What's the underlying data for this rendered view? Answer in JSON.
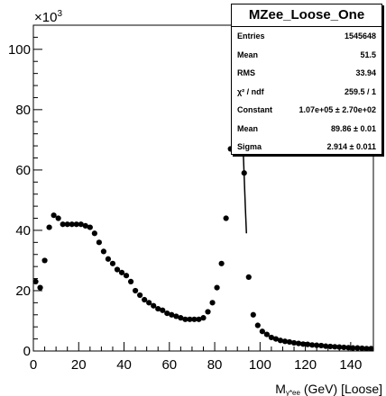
{
  "chart_data": {
    "type": "scatter",
    "title": "",
    "xlabel": "M",
    "xlabel_sub": "γ*ee",
    "xlabel_suffix": " (GeV) [Loose]",
    "ylabel": "",
    "y_multiplier": "×10",
    "y_multiplier_exp": "3",
    "xlim": [
      0,
      150
    ],
    "ylim": [
      0,
      108
    ],
    "x_ticks": [
      0,
      20,
      40,
      60,
      80,
      100,
      120,
      140
    ],
    "y_ticks": [
      0,
      20,
      40,
      60,
      80,
      100
    ],
    "grid": false,
    "marker_color": "#000000",
    "series": [
      {
        "x": [
          1,
          3,
          5,
          7,
          9,
          11,
          13,
          15,
          17,
          19,
          21,
          23,
          25,
          27,
          29,
          31,
          33,
          35,
          37,
          39,
          41,
          43,
          45,
          47,
          49,
          51,
          53,
          55,
          57,
          59,
          61,
          63,
          65,
          67,
          69,
          71,
          73,
          75,
          77,
          79,
          81,
          83,
          85,
          87,
          89,
          91,
          93,
          95,
          97,
          99,
          101,
          103,
          105,
          107,
          109,
          111,
          113,
          115,
          117,
          119,
          121,
          123,
          125,
          127,
          129,
          131,
          133,
          135,
          137,
          139,
          141,
          143,
          145,
          147,
          149
        ],
        "y": [
          23,
          21,
          30,
          41,
          45,
          44,
          42,
          42,
          42,
          42,
          42,
          41.5,
          41,
          39,
          36,
          33,
          30.5,
          29,
          27,
          26,
          25,
          23,
          20,
          18.5,
          17,
          16,
          15,
          14,
          13.5,
          12.5,
          12,
          11.5,
          11,
          10.5,
          10.5,
          10.5,
          10.5,
          11,
          13,
          16,
          21,
          29,
          44,
          67,
          84,
          88,
          59,
          24.5,
          12,
          8.5,
          6.5,
          5.5,
          4.5,
          4,
          3.5,
          3.2,
          3,
          2.7,
          2.5,
          2.3,
          2.2,
          2,
          1.9,
          1.8,
          1.6,
          1.5,
          1.4,
          1.3,
          1.2,
          1.1,
          1,
          1,
          0.9,
          0.8,
          0.8
        ]
      }
    ],
    "fit_curve": {
      "x": [
        91,
        91.5,
        92,
        92.5,
        93,
        93.5,
        94
      ],
      "y": [
        88,
        84,
        77,
        68,
        58,
        48,
        39
      ]
    }
  },
  "stats": {
    "title": "MZee_Loose_One",
    "rows": [
      {
        "label": "Entries",
        "value": "1545648"
      },
      {
        "label": "Mean",
        "value": "51.5"
      },
      {
        "label": "RMS",
        "value": "33.94"
      },
      {
        "label": "χ² / ndf",
        "value": "259.5 / 1"
      },
      {
        "label": "Constant",
        "value": "1.07e+05 ± 2.70e+02"
      },
      {
        "label": "Mean",
        "value": "89.86 ± 0.01"
      },
      {
        "label": "Sigma",
        "value": "2.914 ± 0.011"
      }
    ]
  }
}
